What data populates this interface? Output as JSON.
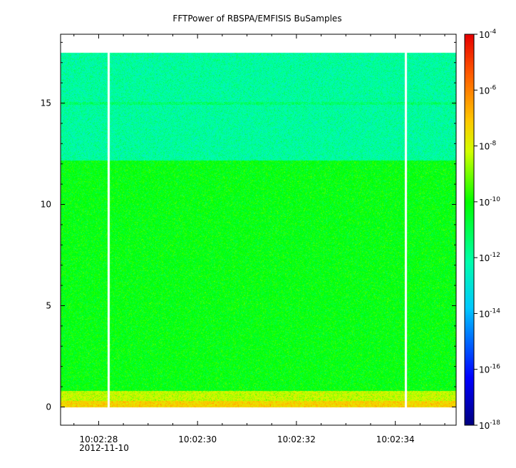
{
  "chart_data": {
    "type": "heatmap",
    "title": "FFTPower of RBSPA/EMFISIS  BuSamples",
    "x_ticks": [
      "10:02:28",
      "10:02:30",
      "10:02:32",
      "10:02:34"
    ],
    "x_sublabel": "2012-11-10",
    "x_range_seconds": [
      "10:02:27.23",
      "10:02:35.23"
    ],
    "y_ticks": [
      "0",
      "5",
      "10",
      "15"
    ],
    "y_range": [
      -0.9,
      18.4
    ],
    "data_max_frequency": 17.5,
    "data_gaps": [
      "10:02:28.2",
      "10:02:34.2"
    ],
    "z_scale": "log",
    "z_range": [
      1e-18,
      0.0001
    ],
    "colorbar_ticks": [
      {
        "base": "10",
        "exp": "-4"
      },
      {
        "base": "10",
        "exp": "-6"
      },
      {
        "base": "10",
        "exp": "-8"
      },
      {
        "base": "10",
        "exp": "-10"
      },
      {
        "base": "10",
        "exp": "-12"
      },
      {
        "base": "10",
        "exp": "-14"
      },
      {
        "base": "10",
        "exp": "-16"
      },
      {
        "base": "10",
        "exp": "-18"
      }
    ],
    "bands": [
      {
        "freq_from": 0,
        "freq_to": 0.3,
        "level_log10": -7.3
      },
      {
        "freq_from": 0.3,
        "freq_to": 0.8,
        "level_log10": -8.3
      },
      {
        "freq_from": 0.8,
        "freq_to": 12.2,
        "level_log10": -10.2
      },
      {
        "freq_from": 12.2,
        "freq_to": 17.5,
        "level_log10": -12.0
      }
    ],
    "line_feature_freq": 15.0,
    "colors": {
      "background": "#ffffff",
      "gap": "#ffffff",
      "axis": "#000000"
    }
  }
}
